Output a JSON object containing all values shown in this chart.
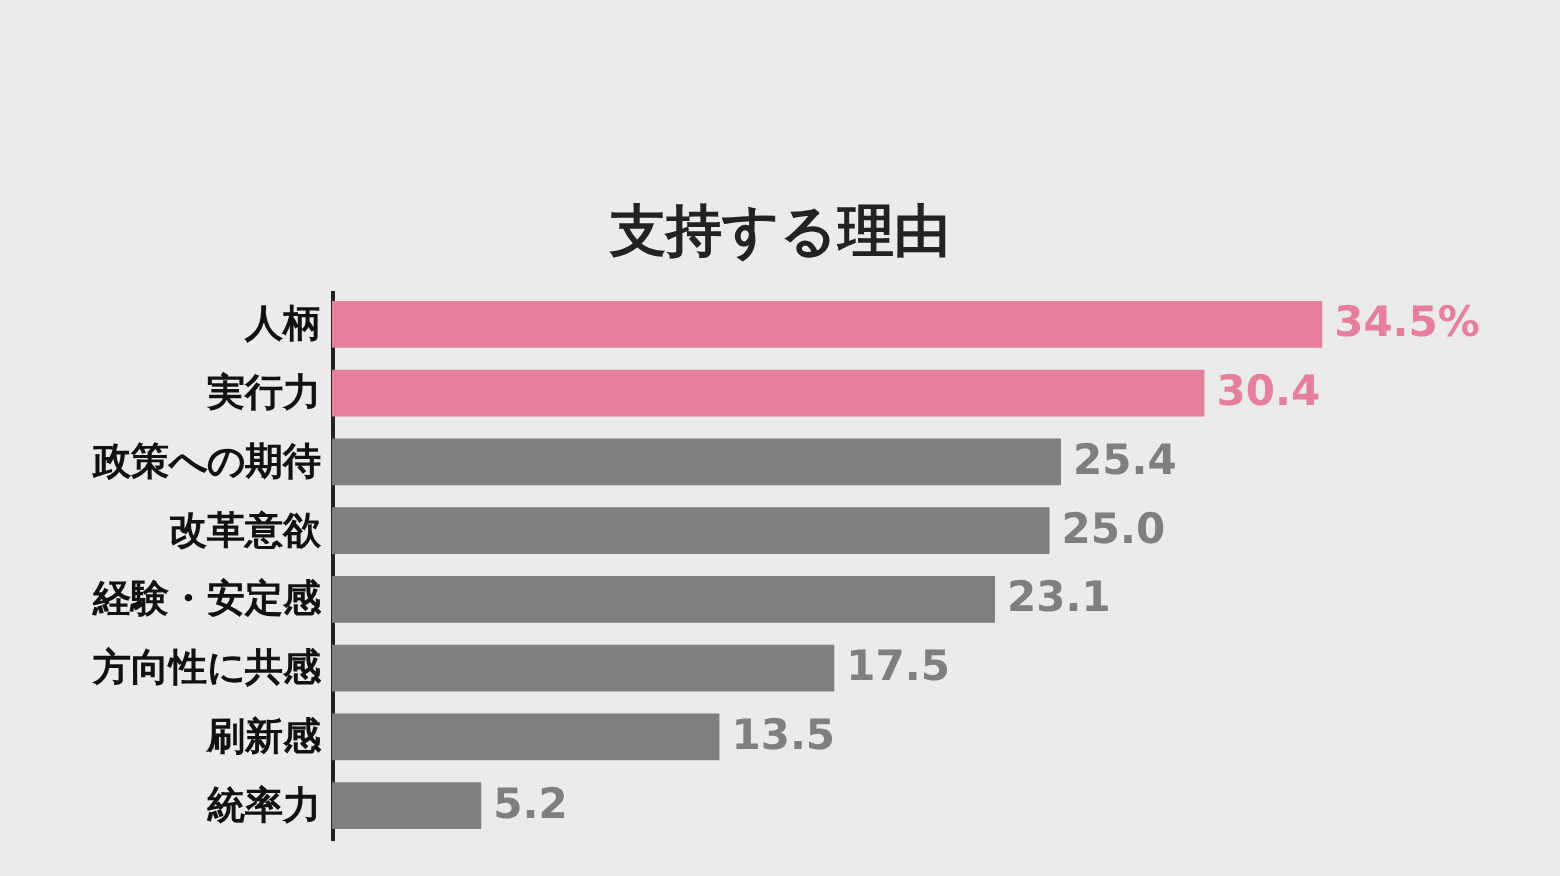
{
  "chart_data": {
    "type": "bar",
    "orientation": "horizontal",
    "title": "支持する理由",
    "categories": [
      "人柄",
      "実行力",
      "政策への期待",
      "改革意欲",
      "経験・安定感",
      "方向性に共感",
      "刷新感",
      "統率力"
    ],
    "values": [
      34.5,
      30.4,
      25.4,
      25.0,
      23.1,
      17.5,
      13.5,
      5.2
    ],
    "value_labels": [
      "34.5%",
      "30.4",
      "25.4",
      "25.0",
      "23.1",
      "17.5",
      "13.5",
      "5.2"
    ],
    "colors": [
      "#e57f9b",
      "#e57f9b",
      "#7f7f7f",
      "#7f7f7f",
      "#7f7f7f",
      "#7f7f7f",
      "#7f7f7f",
      "#7f7f7f"
    ]
  }
}
